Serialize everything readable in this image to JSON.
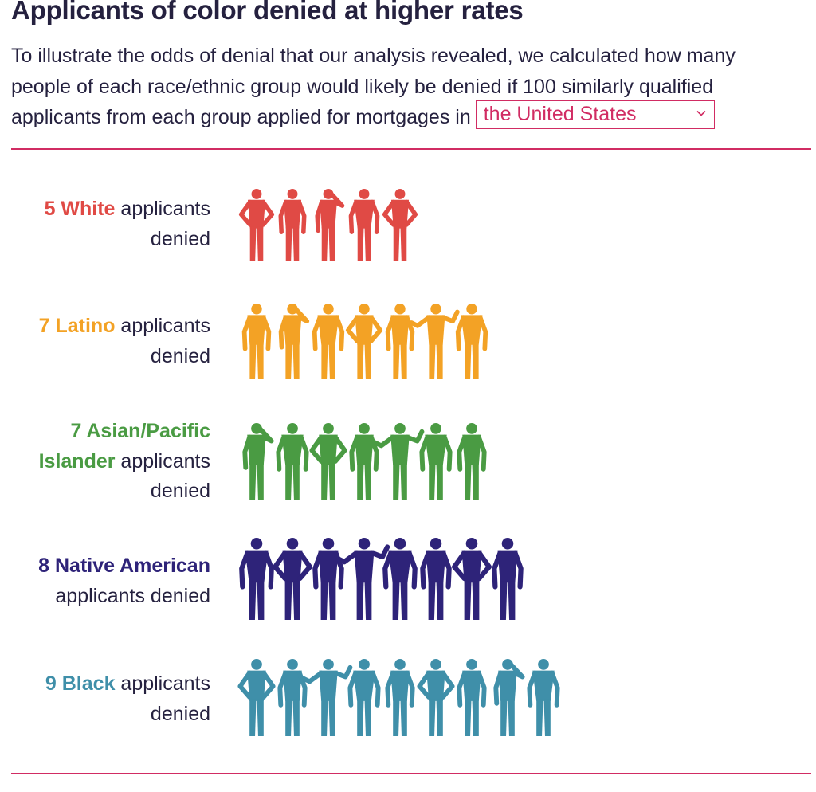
{
  "title": "Applicants of color denied at higher rates",
  "intro": {
    "line1": "To illustrate the odds of denial that our analysis revealed, we calculated how many",
    "line2": "people of each race/ethnic group would likely be denied if 100 similarly qualified",
    "line3": "applicants from each group applied for mortgages in"
  },
  "region_select": {
    "value": "the United States",
    "icon": "chevron-down-icon"
  },
  "colors": {
    "accent": "#d12c63",
    "text": "#25213f"
  },
  "chart_data": {
    "type": "pictogram",
    "unit": "applicants denied per 100 similarly qualified applicants",
    "groups": [
      {
        "count": 5,
        "highlight": "5 White",
        "rest1": " applicants",
        "rest2": "denied",
        "color": "#e04a45"
      },
      {
        "count": 7,
        "highlight": "7 Latino",
        "rest1": " applicants",
        "rest2": "denied",
        "color": "#f3a225"
      },
      {
        "count": 7,
        "highlight1": "7 Asian/Pacific",
        "highlight2": "Islander",
        "rest1": " applicants",
        "rest2": "denied",
        "color": "#4a9b43"
      },
      {
        "count": 8,
        "highlight": "8 Native American",
        "rest1": "applicants denied",
        "color": "#2e2379"
      },
      {
        "count": 9,
        "highlight": "9 Black",
        "rest1": " applicants",
        "rest2": "denied",
        "color": "#3f8fa9"
      }
    ]
  }
}
